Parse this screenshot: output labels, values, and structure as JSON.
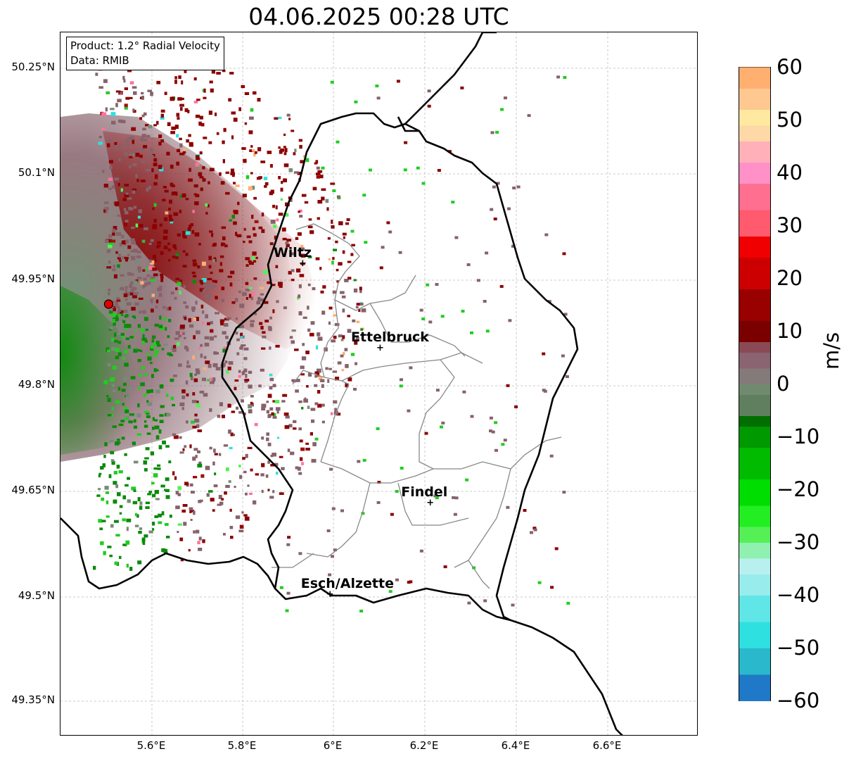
{
  "title": "04.06.2025 00:28 UTC",
  "info": {
    "product": "Product: 1.2° Radial Velocity",
    "source": "Data: RMIB"
  },
  "lat_ticks": [
    "50.25°N",
    "50.1°N",
    "49.95°N",
    "49.8°N",
    "49.65°N",
    "49.5°N",
    "49.35°N"
  ],
  "lon_ticks": [
    "5.6°E",
    "5.8°E",
    "6°E",
    "6.2°E",
    "6.4°E",
    "6.6°E"
  ],
  "colorbar": {
    "unit": "m/s",
    "ticks": [
      "60",
      "50",
      "40",
      "30",
      "20",
      "10",
      "0",
      "−10",
      "−20",
      "−30",
      "−40",
      "−50",
      "−60"
    ],
    "range": [
      -60,
      60
    ]
  },
  "cities": [
    {
      "name": "Wiltz",
      "lon": 5.93,
      "lat": 49.97
    },
    {
      "name": "Ettelbruck",
      "lon": 6.1,
      "lat": 49.85
    },
    {
      "name": "Findel",
      "lon": 6.21,
      "lat": 49.63
    },
    {
      "name": "Esch/Alzette",
      "lon": 5.99,
      "lat": 49.5
    }
  ],
  "radar_site": {
    "lon": 5.505,
    "lat": 49.915
  }
}
